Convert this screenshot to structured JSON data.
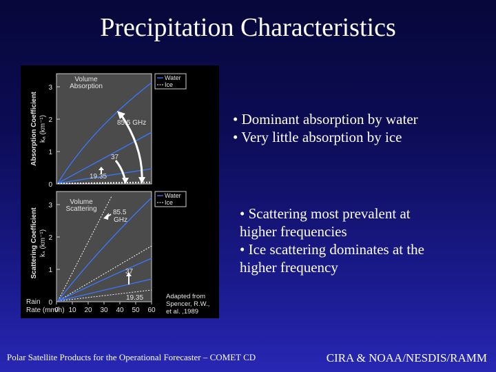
{
  "slide": {
    "title": "Precipitation Characteristics",
    "bullets_top": [
      "• Dominant absorption by water",
      "• Very little absorption by ice"
    ],
    "bullets_bottom": [
      "• Scattering most prevalent at",
      "higher frequencies",
      "• Ice scattering dominates at the",
      "higher frequency"
    ],
    "footer_left": "Polar Satellite Products for the Operational Forecaster – COMET CD",
    "footer_right": "CIRA & NOAA/NESDIS/RAMM"
  },
  "figure": {
    "top_panel": {
      "label_line1": "Volume",
      "label_line2": "Absorption",
      "legend_water": "Water",
      "legend_ice": "Ice",
      "ylabel": "Absorption Coefficient",
      "unit": "kₐ (km⁻¹)",
      "yticks": [
        "0",
        "1",
        "2",
        "3"
      ],
      "freq_85": "85.5 GHz",
      "freq_37": "37",
      "freq_19": "19.35"
    },
    "bottom_panel": {
      "label_line1": "Volume",
      "label_line2": "Scattering",
      "legend_water": "Water",
      "legend_ice": "Ice",
      "ylabel": "Scattering Coefficient",
      "unit": "kₛ (km⁻¹)",
      "yticks": [
        "0",
        "1",
        "2",
        "3"
      ],
      "freq_85_line1": "85.5",
      "freq_85_line2": "GHz",
      "freq_37": "37",
      "freq_19": "19.35",
      "xticks": [
        "0",
        "10",
        "20",
        "30",
        "40",
        "50",
        "60"
      ],
      "xlabel_line1": "Rain",
      "xlabel_line2": "Rate (mm/h)"
    },
    "credit_line1": "Adapted from",
    "credit_line2": "Spencer, R.W.,",
    "credit_line3": "et al. ,1989"
  }
}
